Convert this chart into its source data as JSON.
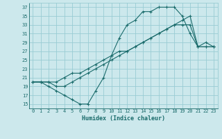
{
  "xlabel": "Humidex (Indice chaleur)",
  "ylabel": "",
  "xlim": [
    -0.5,
    23.5
  ],
  "ylim": [
    14,
    38
  ],
  "yticks": [
    15,
    17,
    19,
    21,
    23,
    25,
    27,
    29,
    31,
    33,
    35,
    37
  ],
  "xticks": [
    0,
    1,
    2,
    3,
    4,
    5,
    6,
    7,
    8,
    9,
    10,
    11,
    12,
    13,
    14,
    15,
    16,
    17,
    18,
    19,
    20,
    21,
    22,
    23
  ],
  "background_color": "#cce8ec",
  "grid_color": "#99ccd4",
  "line_color": "#1a6b6b",
  "line1_x": [
    0,
    1,
    2,
    3,
    4,
    5,
    6,
    7,
    8,
    9,
    10,
    11,
    12,
    13,
    14,
    15,
    16,
    17,
    18,
    19,
    20,
    21,
    22,
    23
  ],
  "line1_y": [
    20,
    20,
    19,
    18,
    17,
    16,
    15,
    15,
    18,
    21,
    26,
    30,
    33,
    34,
    36,
    36,
    37,
    37,
    37,
    35,
    31,
    28,
    28,
    28
  ],
  "line2_x": [
    0,
    1,
    2,
    3,
    4,
    5,
    6,
    7,
    8,
    9,
    10,
    11,
    12,
    13,
    14,
    15,
    16,
    17,
    18,
    19,
    20,
    21,
    22,
    23
  ],
  "line2_y": [
    20,
    20,
    20,
    20,
    21,
    22,
    22,
    23,
    24,
    25,
    26,
    27,
    27,
    28,
    29,
    30,
    31,
    32,
    33,
    33,
    33,
    28,
    28,
    28
  ],
  "line3_x": [
    0,
    1,
    2,
    3,
    4,
    5,
    6,
    7,
    8,
    9,
    10,
    11,
    12,
    13,
    14,
    15,
    16,
    17,
    18,
    19,
    20,
    21,
    22,
    23
  ],
  "line3_y": [
    20,
    20,
    20,
    19,
    19,
    20,
    21,
    22,
    23,
    24,
    25,
    26,
    27,
    28,
    29,
    30,
    31,
    32,
    33,
    34,
    35,
    28,
    29,
    28
  ]
}
